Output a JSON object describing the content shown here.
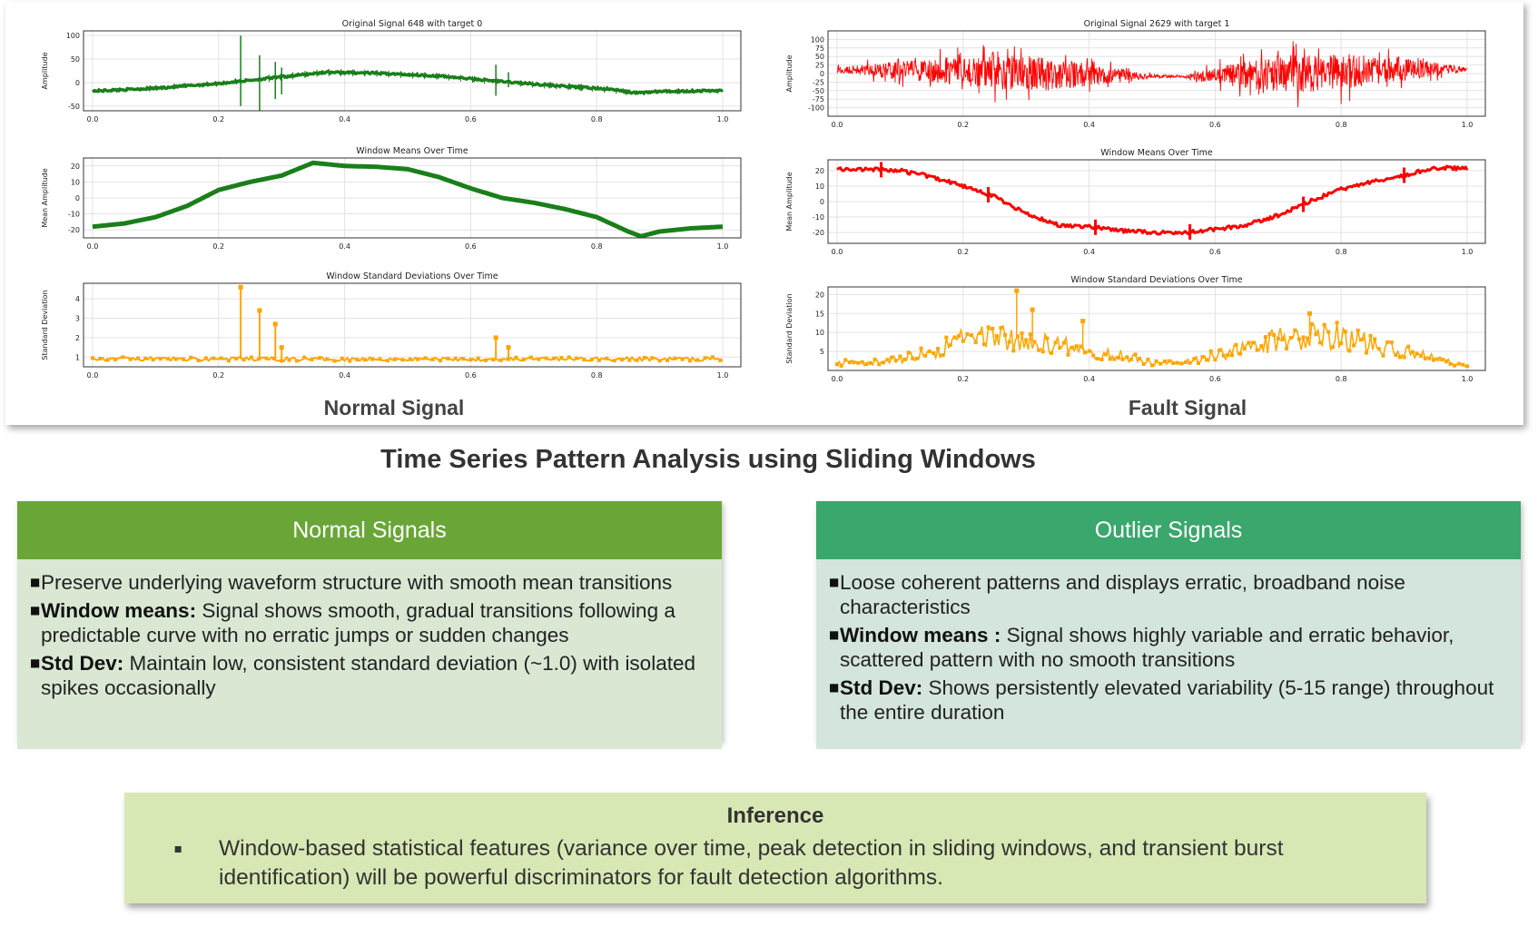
{
  "panels": {
    "normal_caption": "Normal Signal",
    "fault_caption": "Fault Signal"
  },
  "main_title": "Time Series Pattern Analysis using Sliding Windows",
  "cards": {
    "normal": {
      "header": "Normal Signals",
      "color": "#6aa637",
      "body_color": "#d9e7d3",
      "bullets": [
        {
          "bold": "",
          "text": "Preserve underlying waveform structure with smooth mean transitions"
        },
        {
          "bold": "Window means:",
          "text": " Signal shows smooth, gradual transitions following a predictable curve with no erratic jumps or sudden changes"
        },
        {
          "bold": "Std Dev:",
          "text": " Maintain low, consistent standard deviation (~1.0) with isolated spikes occasionally"
        }
      ]
    },
    "outlier": {
      "header": "Outlier Signals",
      "color": "#3aa76d",
      "body_color": "#d3e5dc",
      "bullets": [
        {
          "bold": "",
          "text": "Loose coherent patterns and displays erratic, broadband noise characteristics"
        },
        {
          "bold": "Window means :",
          "text": " Signal shows highly variable and erratic behavior, scattered pattern with no smooth transitions"
        },
        {
          "bold": "Std Dev:",
          "text": "  Shows persistently elevated variability (5-15 range) throughout the entire duration"
        }
      ]
    }
  },
  "inference": {
    "title": "Inference",
    "bullet": "▪",
    "text": "Window-based statistical features (variance over time, peak detection in sliding windows, and transient burst identification) will be powerful discriminators for fault detection algorithms."
  },
  "chart_data": [
    {
      "type": "line",
      "title": "Original Signal 648 with target 0",
      "ylabel": "Amplitude",
      "xlim": [
        0.0,
        1.0
      ],
      "ylim": [
        -60,
        110
      ],
      "xticks": [
        "0.0",
        "0.2",
        "0.4",
        "0.6",
        "0.8",
        "1.0"
      ],
      "yticks": [
        100,
        50,
        0,
        -50
      ],
      "color": "#1a7f1a",
      "grid": true,
      "x": [
        0.0,
        0.1,
        0.2,
        0.3,
        0.37,
        0.45,
        0.55,
        0.65,
        0.75,
        0.82,
        0.86,
        0.9,
        1.0
      ],
      "values": [
        -18,
        -12,
        -2,
        12,
        22,
        20,
        14,
        2,
        -8,
        -14,
        -22,
        -19,
        -17
      ],
      "spikes": [
        [
          0.235,
          100,
          -50
        ],
        [
          0.265,
          58,
          -62
        ],
        [
          0.29,
          44,
          -35
        ],
        [
          0.3,
          32,
          -25
        ],
        [
          0.64,
          38,
          -28
        ],
        [
          0.66,
          22,
          -10
        ]
      ]
    },
    {
      "type": "line",
      "title": "Window Means Over Time",
      "ylabel": "Mean Amplitude",
      "xlim": [
        0.0,
        1.0
      ],
      "ylim": [
        -25,
        25
      ],
      "xticks": [
        "0.0",
        "0.2",
        "0.4",
        "0.6",
        "0.8",
        "1.0"
      ],
      "yticks": [
        20,
        10,
        0,
        -10,
        -20
      ],
      "color": "#1a7f1a",
      "grid": true,
      "x": [
        0.0,
        0.05,
        0.1,
        0.15,
        0.2,
        0.25,
        0.3,
        0.35,
        0.4,
        0.45,
        0.5,
        0.55,
        0.6,
        0.65,
        0.7,
        0.75,
        0.8,
        0.85,
        0.87,
        0.9,
        0.95,
        1.0
      ],
      "values": [
        -18,
        -16,
        -12,
        -5,
        5,
        10,
        14,
        22,
        20,
        19.5,
        18,
        13,
        6,
        0,
        -3,
        -7,
        -12,
        -21,
        -24,
        -21,
        -19,
        -18
      ]
    },
    {
      "type": "line",
      "title": "Window Standard Deviations Over Time",
      "ylabel": "Standard Deviation",
      "xlim": [
        0.0,
        1.0
      ],
      "ylim": [
        0.5,
        4.8
      ],
      "xticks": [
        "0.0",
        "0.2",
        "0.4",
        "0.6",
        "0.8",
        "1.0"
      ],
      "yticks": [
        4,
        3,
        2,
        1
      ],
      "color": "#ffa500",
      "grid": true,
      "baseline": 0.9,
      "spikes": [
        [
          0.235,
          4.6
        ],
        [
          0.265,
          3.4
        ],
        [
          0.29,
          2.7
        ],
        [
          0.3,
          1.5
        ],
        [
          0.64,
          2.0
        ],
        [
          0.66,
          1.5
        ]
      ]
    },
    {
      "type": "line",
      "title": "Original Signal 2629 with target 1",
      "ylabel": "Amplitude",
      "xlim": [
        0.0,
        1.0
      ],
      "ylim": [
        -125,
        125
      ],
      "xticks": [
        "0.0",
        "0.2",
        "0.4",
        "0.6",
        "0.8",
        "1.0"
      ],
      "yticks": [
        100,
        75,
        50,
        25,
        0,
        -25,
        -50,
        -75,
        -100
      ],
      "color": "#ff0000",
      "grid": true,
      "envelope_x": [
        0.0,
        0.1,
        0.2,
        0.3,
        0.4,
        0.5,
        0.55,
        0.6,
        0.7,
        0.8,
        0.9,
        1.0
      ],
      "envelope_amp": [
        15,
        50,
        75,
        100,
        60,
        10,
        5,
        45,
        100,
        100,
        65,
        10
      ],
      "center_x": [
        0.0,
        0.25,
        0.4,
        0.55,
        0.75,
        0.9,
        1.0
      ],
      "center_y": [
        20,
        5,
        -10,
        -15,
        0,
        20,
        20
      ]
    },
    {
      "type": "scatter",
      "title": "Window Means Over Time",
      "ylabel": "Mean Amplitude",
      "xlim": [
        0.0,
        1.0
      ],
      "ylim": [
        -27,
        27
      ],
      "xticks": [
        "0.0",
        "0.2",
        "0.4",
        "0.6",
        "0.8",
        "1.0"
      ],
      "yticks": [
        20,
        10,
        0,
        -10,
        -20
      ],
      "color": "#ff0000",
      "grid": true,
      "x": [
        0.0,
        0.05,
        0.1,
        0.15,
        0.2,
        0.25,
        0.3,
        0.35,
        0.4,
        0.45,
        0.5,
        0.55,
        0.6,
        0.65,
        0.7,
        0.75,
        0.8,
        0.85,
        0.9,
        0.95,
        1.0
      ],
      "values": [
        21,
        21,
        20,
        16,
        10,
        3,
        -8,
        -15,
        -16,
        -19,
        -20,
        -20,
        -18,
        -15,
        -9,
        0,
        8,
        13,
        17,
        22,
        21
      ]
    },
    {
      "type": "line",
      "title": "Window Standard Deviations Over Time",
      "ylabel": "Standard Deviation",
      "xlim": [
        0.0,
        1.0
      ],
      "ylim": [
        0,
        22
      ],
      "xticks": [
        "0.0",
        "0.2",
        "0.4",
        "0.6",
        "0.8",
        "1.0"
      ],
      "yticks": [
        20,
        15,
        10,
        5
      ],
      "color": "#ffa500",
      "grid": true,
      "x": [
        0.0,
        0.05,
        0.1,
        0.15,
        0.2,
        0.25,
        0.3,
        0.35,
        0.4,
        0.45,
        0.5,
        0.55,
        0.6,
        0.65,
        0.7,
        0.75,
        0.8,
        0.85,
        0.9,
        0.95,
        1.0
      ],
      "values": [
        2,
        2,
        3,
        5,
        8,
        9,
        8,
        7,
        5,
        4,
        2,
        2,
        4,
        6,
        8,
        9,
        9,
        7,
        5,
        3,
        1
      ]
    }
  ]
}
